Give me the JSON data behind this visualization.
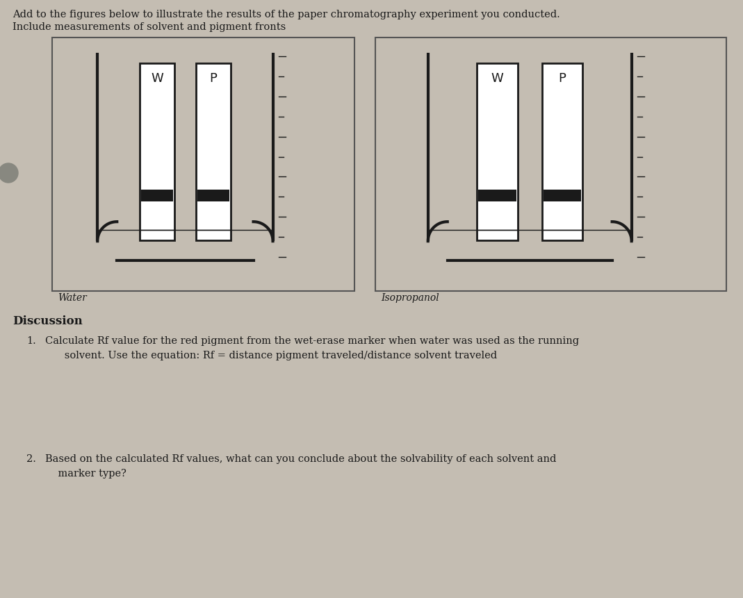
{
  "bg_color": "#c4bdb2",
  "box_bg": "#c4bdb2",
  "beaker_bg": "#c4bdb2",
  "strip_color": "#f8f6f3",
  "line_color": "#1a1a1a",
  "title_line1": "Add to the figures below to illustrate the results of the paper chromatography experiment you conducted.",
  "title_line2": "Include measurements of solvent and pigment fronts",
  "discussion_header": "Discussion",
  "q1_num": "1.",
  "q1_text": "Calculate Rf value for the red pigment from the wet-erase marker when water was used as the running\n      solvent. Use the equation: Rf = distance pigment traveled/distance solvent traveled",
  "q2_num": "2.",
  "q2_text": "Based on the calculated Rf values, what can you conclude about the solvability of each solvent and\n    marker type?",
  "label_water": "Water",
  "label_isopropanol": "Isopropanol",
  "strip_labels": [
    "W",
    "P"
  ],
  "font_color": "#1a1a1a",
  "dot_color": "#888880",
  "title_fontsize": 10.5,
  "label_fontsize": 10,
  "strip_fontsize": 13,
  "disc_fontsize": 12,
  "q_fontsize": 10.5
}
